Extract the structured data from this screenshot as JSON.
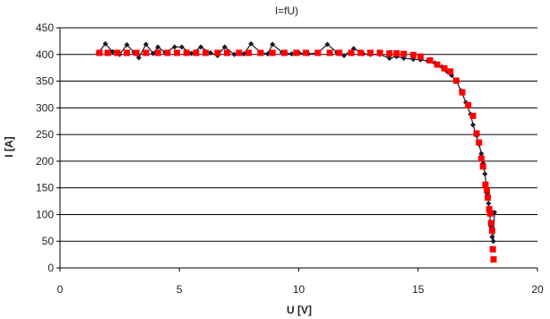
{
  "chart_data": {
    "type": "scatter",
    "title": "I=fU)",
    "xlabel": "U [V]",
    "ylabel": "I [A]",
    "xlim": [
      0,
      20
    ],
    "ylim": [
      0,
      450
    ],
    "x_ticks": [
      "0",
      "5",
      "10",
      "15",
      "20"
    ],
    "y_ticks": [
      "0",
      "50",
      "100",
      "150",
      "200",
      "250",
      "300",
      "350",
      "400",
      "450"
    ],
    "grid": "horizontal",
    "legend": "none",
    "series": [
      {
        "style": "line-diamond",
        "color": "#1a1a2e",
        "points": [
          [
            1.6,
            403
          ],
          [
            1.9,
            420
          ],
          [
            2.2,
            405
          ],
          [
            2.5,
            400
          ],
          [
            2.8,
            418
          ],
          [
            3.1,
            404
          ],
          [
            3.3,
            394
          ],
          [
            3.6,
            419
          ],
          [
            3.9,
            402
          ],
          [
            4.1,
            414
          ],
          [
            4.4,
            404
          ],
          [
            4.8,
            414
          ],
          [
            5.1,
            414
          ],
          [
            5.5,
            402
          ],
          [
            5.9,
            414
          ],
          [
            6.3,
            403
          ],
          [
            6.6,
            398
          ],
          [
            6.9,
            414
          ],
          [
            7.3,
            400
          ],
          [
            7.7,
            401
          ],
          [
            8.0,
            420
          ],
          [
            8.4,
            404
          ],
          [
            8.7,
            401
          ],
          [
            8.9,
            419
          ],
          [
            9.3,
            404
          ],
          [
            9.7,
            401
          ],
          [
            10.0,
            403
          ],
          [
            10.4,
            401
          ],
          [
            10.8,
            403
          ],
          [
            11.2,
            419
          ],
          [
            11.6,
            404
          ],
          [
            11.9,
            398
          ],
          [
            12.3,
            411
          ],
          [
            12.7,
            401
          ],
          [
            13.0,
            400
          ],
          [
            13.4,
            400
          ],
          [
            13.8,
            393
          ],
          [
            14.1,
            396
          ],
          [
            14.4,
            393
          ],
          [
            14.8,
            391
          ],
          [
            15.1,
            390
          ],
          [
            15.4,
            388
          ],
          [
            15.7,
            384
          ],
          [
            16.0,
            377
          ],
          [
            16.2,
            369
          ],
          [
            16.4,
            361
          ],
          [
            16.6,
            350
          ],
          [
            16.8,
            332
          ],
          [
            17.0,
            310
          ],
          [
            17.2,
            288
          ],
          [
            17.3,
            268
          ],
          [
            17.45,
            248
          ],
          [
            17.55,
            232
          ],
          [
            17.65,
            214
          ],
          [
            17.72,
            196
          ],
          [
            17.8,
            176
          ],
          [
            17.85,
            158
          ],
          [
            17.9,
            140
          ],
          [
            17.95,
            121
          ],
          [
            18.0,
            100
          ],
          [
            18.05,
            78
          ],
          [
            18.1,
            58
          ],
          [
            18.15,
            50
          ],
          [
            18.2,
            104
          ]
        ]
      },
      {
        "style": "square",
        "color": "#ff0000",
        "points": [
          [
            1.65,
            403
          ],
          [
            2.0,
            403
          ],
          [
            2.4,
            403
          ],
          [
            2.8,
            403
          ],
          [
            3.2,
            403
          ],
          [
            3.6,
            403
          ],
          [
            4.1,
            403
          ],
          [
            4.5,
            403
          ],
          [
            4.9,
            403
          ],
          [
            5.3,
            403
          ],
          [
            5.7,
            403
          ],
          [
            6.1,
            403
          ],
          [
            6.6,
            403
          ],
          [
            7.0,
            403
          ],
          [
            7.5,
            403
          ],
          [
            7.9,
            403
          ],
          [
            8.4,
            403
          ],
          [
            8.9,
            403
          ],
          [
            9.4,
            403
          ],
          [
            9.9,
            403
          ],
          [
            10.3,
            403
          ],
          [
            10.8,
            403
          ],
          [
            11.3,
            403
          ],
          [
            11.7,
            403
          ],
          [
            12.2,
            403
          ],
          [
            12.6,
            403
          ],
          [
            13.0,
            403
          ],
          [
            13.4,
            403
          ],
          [
            13.8,
            402
          ],
          [
            14.1,
            402
          ],
          [
            14.4,
            401
          ],
          [
            14.8,
            399
          ],
          [
            15.1,
            396
          ],
          [
            15.5,
            389
          ],
          [
            15.8,
            381
          ],
          [
            16.1,
            374
          ],
          [
            16.35,
            368
          ],
          [
            16.6,
            351
          ],
          [
            16.85,
            329
          ],
          [
            17.1,
            305
          ],
          [
            17.3,
            285
          ],
          [
            17.45,
            252
          ],
          [
            17.55,
            235
          ],
          [
            17.65,
            205
          ],
          [
            17.72,
            190
          ],
          [
            17.82,
            156
          ],
          [
            17.88,
            146
          ],
          [
            17.92,
            132
          ],
          [
            17.98,
            110
          ],
          [
            18.02,
            102
          ],
          [
            18.06,
            84
          ],
          [
            18.1,
            70
          ],
          [
            18.13,
            35
          ],
          [
            18.16,
            16
          ]
        ]
      }
    ]
  }
}
